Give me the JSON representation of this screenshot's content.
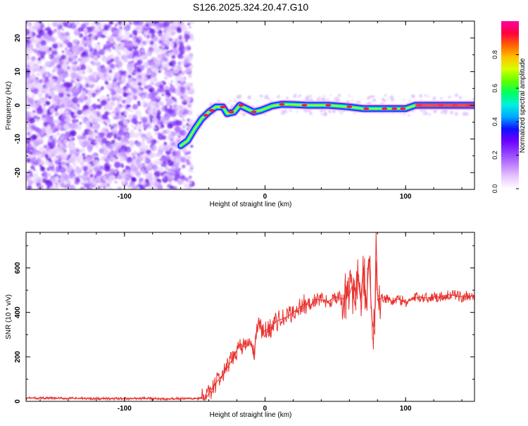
{
  "page": {
    "title": "S126.2025.324.20.47.G10"
  },
  "chart_data": [
    {
      "type": "heatmap",
      "title": "S126.2025.324.20.47.G10",
      "xlabel": "Height of straight line (km)",
      "ylabel": "Frequency (Hz)",
      "xlim": [
        -170,
        149
      ],
      "ylim": [
        -25,
        25
      ],
      "x_ticks": [
        -100,
        0,
        100
      ],
      "y_ticks": [
        -20,
        -10,
        0,
        10,
        20
      ],
      "colorbar": {
        "label": "Normalized spectral amplitude",
        "range": [
          0,
          1
        ],
        "ticks": [
          "0.0",
          "0.2",
          "0.4",
          "0.6",
          "0.8"
        ],
        "colors": [
          "#ffffff",
          "#e8c8ff",
          "#c080ff",
          "#9040ff",
          "#6a00ff",
          "#1010ff",
          "#00a8ff",
          "#00f0e0",
          "#00ff60",
          "#60ff00",
          "#d8ff00",
          "#ffc000",
          "#ff6000",
          "#ff0040",
          "#ff00a0"
        ]
      },
      "noise_region_x": [
        -170,
        -52
      ],
      "signal_track": [
        {
          "x": -60,
          "y": -12
        },
        {
          "x": -55,
          "y": -10.5
        },
        {
          "x": -50,
          "y": -7
        },
        {
          "x": -45,
          "y": -4
        },
        {
          "x": -40,
          "y": -2
        },
        {
          "x": -35,
          "y": -0.5
        },
        {
          "x": -30,
          "y": -0.5
        },
        {
          "x": -27,
          "y": -2.5
        },
        {
          "x": -22,
          "y": -2
        },
        {
          "x": -18,
          "y": 0
        },
        {
          "x": -13,
          "y": -1
        },
        {
          "x": -8,
          "y": -2
        },
        {
          "x": -3,
          "y": -1.5
        },
        {
          "x": 5,
          "y": -0.2
        },
        {
          "x": 12,
          "y": 0.3
        },
        {
          "x": 20,
          "y": 0.2
        },
        {
          "x": 30,
          "y": 0
        },
        {
          "x": 45,
          "y": 0
        },
        {
          "x": 60,
          "y": -0.5
        },
        {
          "x": 70,
          "y": -1
        },
        {
          "x": 80,
          "y": -1
        },
        {
          "x": 100,
          "y": -1
        },
        {
          "x": 107,
          "y": 0
        },
        {
          "x": 120,
          "y": 0
        },
        {
          "x": 149,
          "y": 0
        }
      ]
    },
    {
      "type": "line",
      "xlabel": "Height of straight line (km)",
      "ylabel": "SNR (10 * v/v)",
      "xlim": [
        -170,
        149
      ],
      "ylim": [
        0,
        760
      ],
      "x_ticks": [
        -100,
        0,
        100
      ],
      "y_ticks": [
        0,
        200,
        400,
        600
      ],
      "series": [
        {
          "color": "#e8322e",
          "x": [
            -170,
            -150,
            -130,
            -110,
            -90,
            -70,
            -50,
            -42,
            -38,
            -34,
            -30,
            -26,
            -22,
            -18,
            -14,
            -10,
            -8,
            -6,
            -4,
            -2,
            0,
            4,
            8,
            12,
            16,
            20,
            24,
            28,
            32,
            36,
            40,
            45,
            50,
            55,
            60,
            62,
            64,
            66,
            68,
            70,
            72,
            74,
            76,
            78,
            79,
            80,
            82,
            85,
            90,
            95,
            100,
            105,
            110,
            115,
            120,
            125,
            130,
            135,
            140,
            145,
            149
          ],
          "y": [
            15,
            14,
            13,
            12,
            13,
            12,
            12,
            14,
            55,
            90,
            120,
            160,
            200,
            260,
            240,
            270,
            200,
            320,
            360,
            300,
            320,
            330,
            360,
            370,
            380,
            400,
            420,
            440,
            430,
            460,
            455,
            450,
            470,
            460,
            480,
            520,
            430,
            560,
            450,
            610,
            420,
            640,
            370,
            300,
            760,
            480,
            460,
            470,
            450,
            460,
            445,
            460,
            470,
            465,
            470,
            470,
            480,
            475,
            470,
            475,
            470
          ]
        }
      ]
    }
  ]
}
